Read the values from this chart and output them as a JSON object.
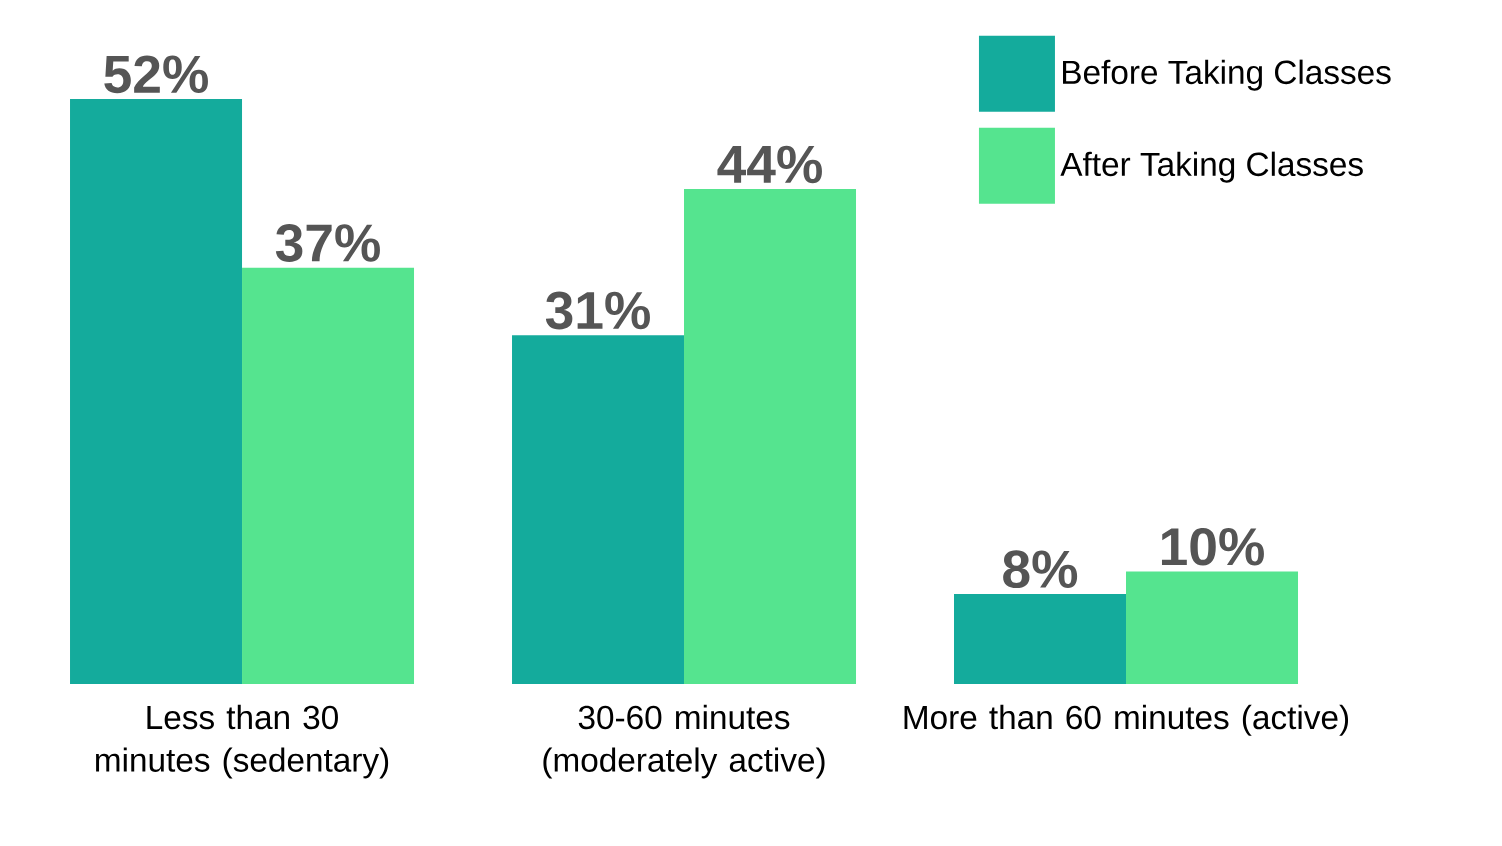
{
  "chart_data": {
    "type": "bar",
    "categories": [
      "Less than 30 minutes (sedentary)",
      "30-60 minutes (moderately active)",
      "More than 60 minutes (active)"
    ],
    "series": [
      {
        "name": "Before Taking Classes",
        "color": "#14ab9c",
        "values": [
          52,
          31,
          8
        ],
        "value_labels": [
          "52%",
          "31%",
          "8%"
        ]
      },
      {
        "name": "After Taking Classes",
        "color": "#55e48f",
        "values": [
          37,
          44,
          10
        ],
        "value_labels": [
          "37%",
          "44%",
          "10%"
        ]
      }
    ],
    "legend": "top right"
  }
}
